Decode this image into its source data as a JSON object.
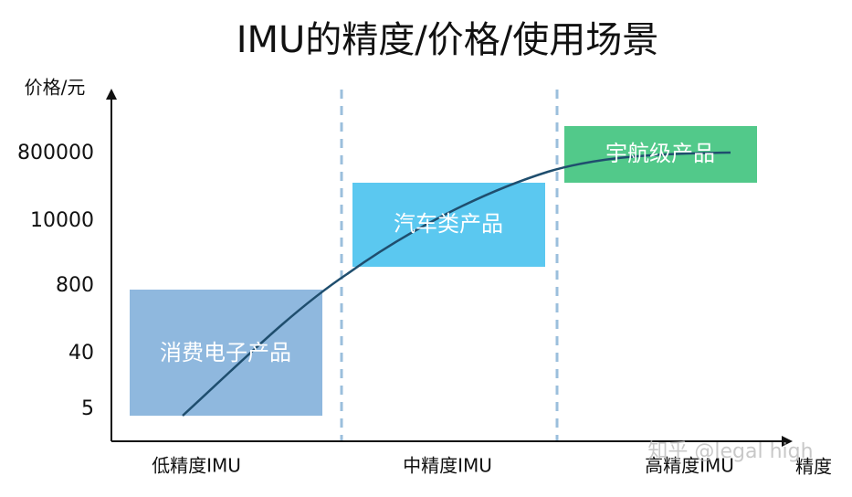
{
  "title": "IMU的精度/价格/使用场景",
  "y_axis": {
    "label": "价格/元",
    "labels": [
      "800000",
      "10000",
      "800",
      "40",
      "5"
    ]
  },
  "x_axis": {
    "label": "精度",
    "labels": [
      "低精度IMU",
      "中精度IMU",
      "高精度IMU"
    ]
  },
  "boxes": [
    {
      "label": "消费电子产品"
    },
    {
      "label": "汽车类产品"
    },
    {
      "label": "宇航级产品"
    }
  ],
  "watermark": "知乎 @legal high"
}
